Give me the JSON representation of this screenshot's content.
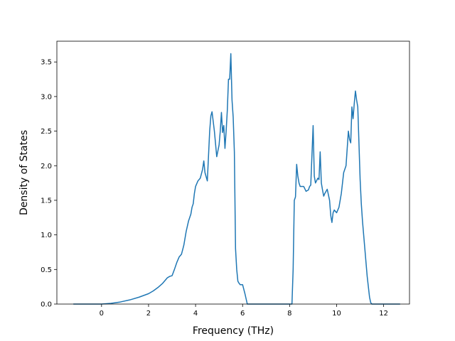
{
  "chart_data": {
    "type": "line",
    "title": "",
    "xlabel": "Frequency (THz)",
    "ylabel": "Density of States",
    "xlim": [
      -1.9,
      13.1
    ],
    "ylim": [
      0.0,
      3.8
    ],
    "xticks": [
      0,
      2,
      4,
      6,
      8,
      10,
      12
    ],
    "xtick_labels": [
      "0",
      "2",
      "4",
      "6",
      "8",
      "10",
      "12"
    ],
    "yticks": [
      0.0,
      0.5,
      1.0,
      1.5,
      2.0,
      2.5,
      3.0,
      3.5
    ],
    "ytick_labels": [
      "0.0",
      "0.5",
      "1.0",
      "1.5",
      "2.0",
      "2.5",
      "3.0",
      "3.5"
    ],
    "grid": false,
    "legend": "none",
    "line_color": "#1f77b4",
    "series": [
      {
        "x": [
          -1.2,
          -0.5,
          0.0,
          0.4,
          0.8,
          1.2,
          1.6,
          2.0,
          2.2,
          2.4,
          2.6,
          2.8,
          2.9,
          3.0,
          3.1,
          3.2,
          3.3,
          3.4,
          3.5,
          3.6,
          3.7,
          3.8,
          3.85,
          3.9,
          3.95,
          4.0,
          4.1,
          4.2,
          4.3,
          4.35,
          4.4,
          4.5,
          4.6,
          4.65,
          4.7,
          4.8,
          4.9,
          5.0,
          5.05,
          5.1,
          5.15,
          5.2,
          5.25,
          5.3,
          5.35,
          5.4,
          5.45,
          5.5,
          5.55,
          5.6,
          5.65,
          5.7,
          5.75,
          5.8,
          5.85,
          5.9,
          5.95,
          6.0,
          6.1,
          6.2,
          6.3,
          6.4,
          6.5,
          6.6,
          7.0,
          8.0,
          8.1,
          8.15,
          8.2,
          8.25,
          8.3,
          8.35,
          8.4,
          8.45,
          8.5,
          8.6,
          8.7,
          8.8,
          8.85,
          8.9,
          9.0,
          9.05,
          9.1,
          9.2,
          9.25,
          9.3,
          9.35,
          9.4,
          9.45,
          9.5,
          9.6,
          9.7,
          9.75,
          9.8,
          9.85,
          9.9,
          10.0,
          10.1,
          10.2,
          10.3,
          10.4,
          10.5,
          10.55,
          10.6,
          10.65,
          10.7,
          10.75,
          10.8,
          10.85,
          10.9,
          11.0,
          11.05,
          11.1,
          11.2,
          11.3,
          11.4,
          11.45,
          11.5,
          11.55,
          11.6,
          12.0,
          12.7
        ],
        "y": [
          0.0,
          0.0,
          0.0,
          0.01,
          0.03,
          0.06,
          0.1,
          0.15,
          0.19,
          0.24,
          0.3,
          0.38,
          0.4,
          0.41,
          0.5,
          0.6,
          0.68,
          0.72,
          0.85,
          1.05,
          1.2,
          1.3,
          1.4,
          1.45,
          1.6,
          1.7,
          1.78,
          1.82,
          1.95,
          2.07,
          1.9,
          1.78,
          2.5,
          2.72,
          2.78,
          2.5,
          2.13,
          2.3,
          2.5,
          2.77,
          2.48,
          2.58,
          2.25,
          2.5,
          2.8,
          3.25,
          3.25,
          3.62,
          2.95,
          2.7,
          2.2,
          0.8,
          0.5,
          0.33,
          0.3,
          0.28,
          0.28,
          0.28,
          0.15,
          0.0,
          0.0,
          0.0,
          0.0,
          0.0,
          0.0,
          0.0,
          0.0,
          0.5,
          1.5,
          1.55,
          2.02,
          1.85,
          1.75,
          1.7,
          1.7,
          1.7,
          1.63,
          1.65,
          1.7,
          1.72,
          2.58,
          1.85,
          1.75,
          1.82,
          1.8,
          2.2,
          1.75,
          1.65,
          1.56,
          1.6,
          1.66,
          1.5,
          1.28,
          1.18,
          1.32,
          1.36,
          1.32,
          1.4,
          1.6,
          1.9,
          2.0,
          2.5,
          2.38,
          2.33,
          2.85,
          2.68,
          2.9,
          3.08,
          2.95,
          2.85,
          1.8,
          1.45,
          1.2,
          0.8,
          0.4,
          0.1,
          0.02,
          0.0,
          0.0,
          0.0,
          0.0,
          0.0
        ]
      }
    ]
  }
}
